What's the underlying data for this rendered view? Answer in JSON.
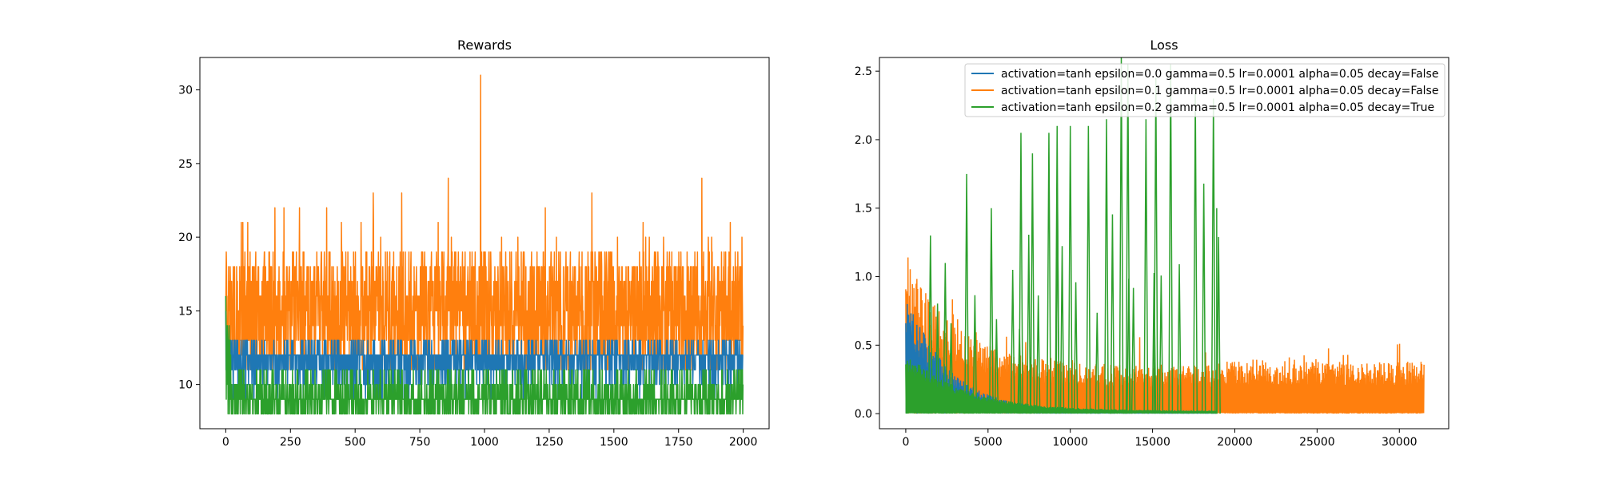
{
  "chart_data": [
    {
      "type": "line",
      "title": "Rewards",
      "xlabel": "",
      "ylabel": "",
      "xlim": [
        -100,
        2100
      ],
      "ylim": [
        7,
        32.2
      ],
      "xticks": [
        0,
        250,
        500,
        750,
        1000,
        1250,
        1500,
        1750,
        2000
      ],
      "xtick_labels": [
        "0",
        "250",
        "500",
        "750",
        "1000",
        "1250",
        "1500",
        "1750",
        "2000"
      ],
      "yticks": [
        10,
        15,
        20,
        25,
        30
      ],
      "ytick_labels": [
        "10",
        "15",
        "20",
        "25",
        "30"
      ],
      "grid": false,
      "series": [
        {
          "color": "#1f77b4",
          "n_points": 2000,
          "x_range": [
            0,
            2000
          ],
          "values_summary": {
            "typical_low": 10,
            "typical_high": 13,
            "base": 11.7,
            "min": 9,
            "max": 15
          },
          "initial_value": 15
        },
        {
          "color": "#ff7f0e",
          "n_points": 2000,
          "x_range": [
            0,
            2000
          ],
          "values_summary": {
            "typical_low": 13,
            "typical_high": 19,
            "min": 9,
            "max": 31
          },
          "peaks": [
            {
              "x": 60,
              "y": 21
            },
            {
              "x": 190,
              "y": 22
            },
            {
              "x": 225,
              "y": 22
            },
            {
              "x": 285,
              "y": 22
            },
            {
              "x": 390,
              "y": 22
            },
            {
              "x": 570,
              "y": 23
            },
            {
              "x": 680,
              "y": 23
            },
            {
              "x": 860,
              "y": 24
            },
            {
              "x": 985,
              "y": 31
            },
            {
              "x": 1235,
              "y": 22
            },
            {
              "x": 1415,
              "y": 23
            },
            {
              "x": 1840,
              "y": 24
            },
            {
              "x": 1950,
              "y": 21
            }
          ]
        },
        {
          "color": "#2ca02c",
          "n_points": 2000,
          "x_range": [
            0,
            2000
          ],
          "values_summary": {
            "typical_low": 8,
            "typical_high": 11,
            "base": 9.4,
            "min": 8,
            "max": 16
          },
          "initial_value": 16
        }
      ]
    },
    {
      "type": "line",
      "title": "Loss",
      "xlabel": "",
      "ylabel": "",
      "xlim": [
        -1600,
        33000
      ],
      "ylim": [
        -0.11,
        2.6
      ],
      "xticks": [
        0,
        5000,
        10000,
        15000,
        20000,
        25000,
        30000
      ],
      "xtick_labels": [
        "0",
        "5000",
        "10000",
        "15000",
        "20000",
        "25000",
        "30000"
      ],
      "yticks": [
        0.0,
        0.5,
        1.0,
        1.5,
        2.0,
        2.5
      ],
      "ytick_labels": [
        "0.0",
        "0.5",
        "1.0",
        "1.5",
        "2.0",
        "2.5"
      ],
      "grid": false,
      "legend_position": "upper right",
      "series": [
        {
          "name": "activation=tanh epsilon=0.0 gamma=0.5 lr=0.0001 alpha=0.05 decay=False",
          "color": "#1f77b4",
          "x_range": [
            0,
            18900
          ],
          "values_summary": {
            "min": 0.0,
            "max": 1.1,
            "start_envelope": 1.1,
            "end_envelope": 0.02
          }
        },
        {
          "name": "activation=tanh epsilon=0.1 gamma=0.5 lr=0.0001 alpha=0.05 decay=False",
          "color": "#ff7f0e",
          "x_range": [
            0,
            31500
          ],
          "values_summary": {
            "min": 0.0,
            "max": 1.35,
            "start_envelope": 1.2,
            "mid_envelope": 0.4,
            "end_envelope": 0.4
          }
        },
        {
          "name": "activation=tanh epsilon=0.2 gamma=0.5 lr=0.0001 alpha=0.05 decay=True",
          "color": "#2ca02c",
          "x_range": [
            0,
            18900
          ],
          "values_summary": {
            "min": 0.0,
            "max": 2.6,
            "base_start": 0.45,
            "base_end": 0.02
          },
          "spikes": [
            {
              "x": 1500,
              "y": 1.3
            },
            {
              "x": 2400,
              "y": 1.1
            },
            {
              "x": 3700,
              "y": 1.75
            },
            {
              "x": 5200,
              "y": 1.5
            },
            {
              "x": 6500,
              "y": 1.05
            },
            {
              "x": 7000,
              "y": 2.05
            },
            {
              "x": 7700,
              "y": 1.9
            },
            {
              "x": 8700,
              "y": 2.05
            },
            {
              "x": 9200,
              "y": 2.1
            },
            {
              "x": 10000,
              "y": 2.1
            },
            {
              "x": 11100,
              "y": 2.1
            },
            {
              "x": 12200,
              "y": 2.15
            },
            {
              "x": 13100,
              "y": 2.6
            },
            {
              "x": 13500,
              "y": 2.55
            },
            {
              "x": 14600,
              "y": 2.15
            },
            {
              "x": 15200,
              "y": 2.45
            },
            {
              "x": 16100,
              "y": 2.55
            },
            {
              "x": 17600,
              "y": 2.35
            },
            {
              "x": 18700,
              "y": 2.3
            }
          ]
        }
      ]
    }
  ]
}
